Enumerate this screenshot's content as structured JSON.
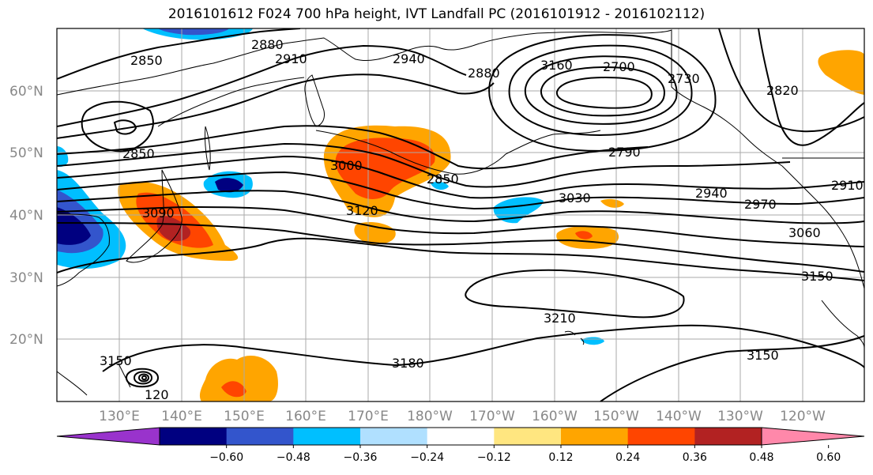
{
  "title": "2016101612 F024 700 hPa height, IVT Landfall PC (2016101912 - 2016102112)",
  "lat_labels": [
    "60°N",
    "50°N",
    "40°N",
    "30°N",
    "20°N"
  ],
  "lon_labels": [
    "130°E",
    "140°E",
    "150°E",
    "160°E",
    "170°E",
    "180°W",
    "170°W",
    "160°W",
    "150°W",
    "140°W",
    "130°W",
    "120°W"
  ],
  "contour_labels": [
    "2850",
    "2880",
    "2910",
    "2940",
    "2880",
    "3160",
    "2700",
    "2730",
    "2820",
    "2850",
    "3000",
    "2850",
    "2790",
    "3090",
    "3120",
    "3030",
    "2940",
    "2970",
    "2910",
    "3060",
    "3150",
    "3210",
    "3150",
    "3180",
    "3150",
    "120"
  ],
  "colorbar": {
    "ticks": [
      "−0.60",
      "−0.48",
      "−0.36",
      "−0.24",
      "−0.12",
      "0.12",
      "0.24",
      "0.36",
      "0.48",
      "0.60"
    ],
    "colors": [
      "#9933cc",
      "#000080",
      "#3355cc",
      "#00bfff",
      "#b0e0ff",
      "#ffffff",
      "#ffe680",
      "#ffa500",
      "#ff4500",
      "#b22222",
      "#ff88aa"
    ]
  },
  "colors": {
    "contour": "#000000",
    "coast": "#000000",
    "grid": "#aaaaaa"
  }
}
